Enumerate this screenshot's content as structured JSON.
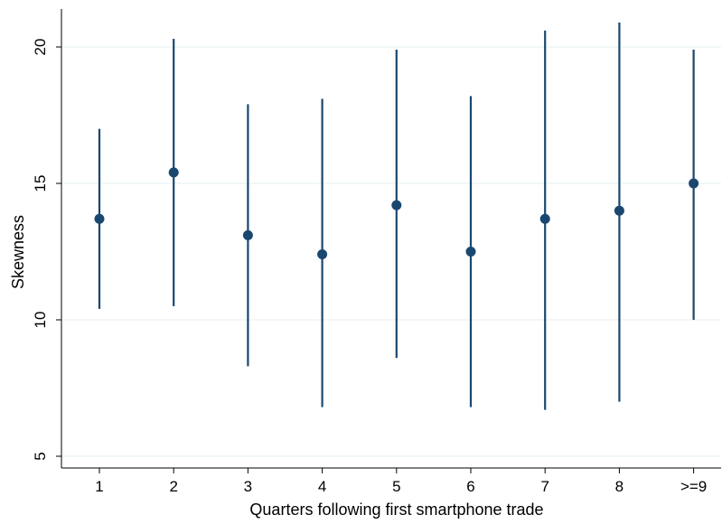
{
  "chart_data": {
    "type": "scatter",
    "title": "",
    "xlabel": "Quarters following first smartphone trade",
    "ylabel": "Skewness",
    "categories": [
      "1",
      "2",
      "3",
      "4",
      "5",
      "6",
      "7",
      "8",
      ">=9"
    ],
    "yticks": [
      "5",
      "10",
      "15",
      "20"
    ],
    "ylim": [
      5,
      21.5
    ],
    "grid": true,
    "series": [
      {
        "points": [
          {
            "x": "1",
            "y": 13.7,
            "low": 10.4,
            "high": 17.0
          },
          {
            "x": "2",
            "y": 15.4,
            "low": 10.5,
            "high": 20.3
          },
          {
            "x": "3",
            "y": 13.1,
            "low": 8.3,
            "high": 17.9
          },
          {
            "x": "4",
            "y": 12.4,
            "low": 6.8,
            "high": 18.1
          },
          {
            "x": "5",
            "y": 14.2,
            "low": 8.6,
            "high": 19.9
          },
          {
            "x": "6",
            "y": 12.5,
            "low": 6.8,
            "high": 18.2
          },
          {
            "x": "7",
            "y": 13.7,
            "low": 6.7,
            "high": 20.6
          },
          {
            "x": "8",
            "y": 14.0,
            "low": 7.0,
            "high": 20.9
          },
          {
            "x": ">=9",
            "y": 15.0,
            "low": 10.0,
            "high": 19.9
          }
        ]
      }
    ],
    "colors": {
      "marker": "#1a476f",
      "grid": "#eaf2f3",
      "axis": "#000000"
    }
  }
}
